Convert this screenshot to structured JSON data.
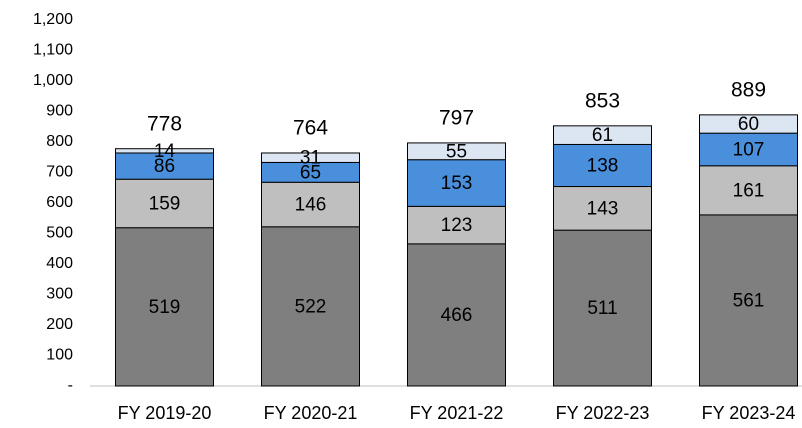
{
  "chart_data": {
    "type": "stacked-bar",
    "categories": [
      "FY 2019-20",
      "FY 2020-21",
      "FY 2021-22",
      "FY 2022-23",
      "FY 2023-24"
    ],
    "series": [
      {
        "color": "#7f7f7f",
        "values": [
          519,
          522,
          466,
          511,
          561
        ]
      },
      {
        "color": "#bfbfbf",
        "values": [
          159,
          146,
          123,
          143,
          161
        ]
      },
      {
        "color": "#4a8fdb",
        "values": [
          86,
          65,
          153,
          138,
          107
        ]
      },
      {
        "color": "#dce6f2",
        "values": [
          14,
          31,
          55,
          61,
          60
        ]
      }
    ],
    "totals": [
      778,
      764,
      797,
      853,
      889
    ],
    "ylim": [
      0,
      1200
    ],
    "yticks": [
      {
        "value": 0,
        "label": "-"
      },
      100,
      200,
      300,
      400,
      500,
      600,
      700,
      800,
      900,
      {
        "value": 1000,
        "label": "1,000"
      },
      {
        "value": 1100,
        "label": "1,100"
      },
      {
        "value": 1200,
        "label": "1,200"
      }
    ]
  }
}
